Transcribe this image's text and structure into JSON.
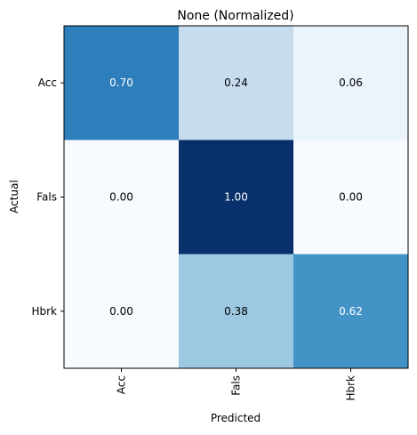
{
  "chart_data": {
    "type": "heatmap",
    "title": "None (Normalized)",
    "xlabel": "Predicted",
    "ylabel": "Actual",
    "x_categories": [
      "Acc",
      "Fals",
      "Hbrk"
    ],
    "y_categories": [
      "Acc",
      "Fals",
      "Hbrk"
    ],
    "values": [
      [
        0.7,
        0.24,
        0.06
      ],
      [
        0.0,
        1.0,
        0.0
      ],
      [
        0.0,
        0.38,
        0.62
      ]
    ],
    "cell_labels": [
      [
        "0.70",
        "0.24",
        "0.06"
      ],
      [
        "0.00",
        "1.00",
        "0.00"
      ],
      [
        "0.00",
        "0.38",
        "0.62"
      ]
    ],
    "colormap": "Blues",
    "vmin": 0,
    "vmax": 1,
    "x_tick_rotation": "vertical",
    "grid": false,
    "legend": "none"
  }
}
